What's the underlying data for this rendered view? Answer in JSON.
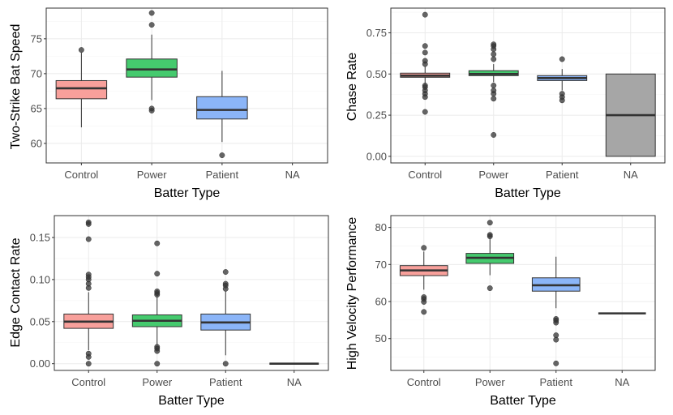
{
  "chart_data": [
    {
      "type": "boxplot",
      "title": "",
      "xlabel": "Batter Type",
      "ylabel": "Two-Strike Bat Speed",
      "categories": [
        "Control",
        "Power",
        "Patient",
        "NA"
      ],
      "ylim": [
        57.2,
        79.4
      ],
      "yticks": [
        60,
        65,
        70,
        75
      ],
      "y_tick_labels": [
        "60",
        "65",
        "70",
        "75"
      ],
      "grid": true,
      "legend": "none",
      "boxes": [
        {
          "category": "Control",
          "q1": 66.4,
          "median": 67.9,
          "q3": 69.0,
          "whisker_low": 62.3,
          "whisker_high": 73.0,
          "outliers": [
            73.4
          ],
          "fill": "#F8A09B"
        },
        {
          "category": "Power",
          "q1": 69.5,
          "median": 70.6,
          "q3": 72.1,
          "whisker_low": 66.2,
          "whisker_high": 75.6,
          "outliers": [
            64.7,
            65.0,
            77.0,
            78.7
          ],
          "fill": "#45CA6E"
        },
        {
          "category": "Patient",
          "q1": 63.5,
          "median": 64.8,
          "q3": 66.7,
          "whisker_low": 60.2,
          "whisker_high": 70.4,
          "outliers": [
            58.3
          ],
          "fill": "#8BB5F8"
        }
      ]
    },
    {
      "type": "boxplot",
      "title": "",
      "xlabel": "Batter Type",
      "ylabel": "Chase Rate",
      "categories": [
        "Control",
        "Power",
        "Patient",
        "NA"
      ],
      "ylim": [
        -0.04,
        0.9
      ],
      "yticks": [
        0,
        0.25,
        0.5,
        0.75
      ],
      "y_tick_labels": [
        "0.00",
        "0.25",
        "0.50",
        "0.75"
      ],
      "grid": true,
      "legend": "none",
      "boxes": [
        {
          "category": "Control",
          "q1": 0.48,
          "median": 0.49,
          "q3": 0.505,
          "whisker_low": 0.44,
          "whisker_high": 0.545,
          "outliers": [
            0.27,
            0.36,
            0.38,
            0.4,
            0.42,
            0.43,
            0.56,
            0.58,
            0.63,
            0.67,
            0.86
          ],
          "fill": "#F8A09B"
        },
        {
          "category": "Power",
          "q1": 0.49,
          "median": 0.5,
          "q3": 0.52,
          "whisker_low": 0.45,
          "whisker_high": 0.56,
          "outliers": [
            0.13,
            0.35,
            0.38,
            0.4,
            0.43,
            0.59,
            0.62,
            0.65,
            0.67,
            0.68
          ],
          "fill": "#45CA6E"
        },
        {
          "category": "Patient",
          "q1": 0.46,
          "median": 0.475,
          "q3": 0.49,
          "whisker_low": 0.4,
          "whisker_high": 0.53,
          "outliers": [
            0.34,
            0.36,
            0.38,
            0.59
          ],
          "fill": "#8BB5F8"
        },
        {
          "category": "NA",
          "q1": 0.0,
          "median": 0.25,
          "q3": 0.5,
          "whisker_low": 0.0,
          "whisker_high": 0.5,
          "outliers": [],
          "fill": "#A6A6A6"
        }
      ]
    },
    {
      "type": "boxplot",
      "title": "",
      "xlabel": "Batter Type",
      "ylabel": "Edge Contact Rate",
      "categories": [
        "Control",
        "Power",
        "Patient",
        "NA"
      ],
      "ylim": [
        -0.008,
        0.176
      ],
      "yticks": [
        0,
        0.05,
        0.1,
        0.15
      ],
      "y_tick_labels": [
        "0.00",
        "0.05",
        "0.10",
        "0.15"
      ],
      "grid": true,
      "legend": "none",
      "boxes": [
        {
          "category": "Control",
          "q1": 0.042,
          "median": 0.05,
          "q3": 0.059,
          "whisker_low": 0.016,
          "whisker_high": 0.085,
          "outliers": [
            0.0,
            0.008,
            0.012,
            0.09,
            0.095,
            0.1,
            0.103,
            0.106,
            0.148,
            0.166,
            0.168
          ],
          "fill": "#F8A09B"
        },
        {
          "category": "Power",
          "q1": 0.044,
          "median": 0.051,
          "q3": 0.058,
          "whisker_low": 0.022,
          "whisker_high": 0.08,
          "outliers": [
            0.0,
            0.015,
            0.018,
            0.02,
            0.082,
            0.084,
            0.086,
            0.107,
            0.143
          ],
          "fill": "#45CA6E"
        },
        {
          "category": "Patient",
          "q1": 0.04,
          "median": 0.049,
          "q3": 0.059,
          "whisker_low": 0.01,
          "whisker_high": 0.086,
          "outliers": [
            0.0,
            0.089,
            0.093,
            0.095,
            0.109
          ],
          "fill": "#8BB5F8"
        },
        {
          "category": "NA",
          "q1": 0.0,
          "median": 0.0,
          "q3": 0.0,
          "whisker_low": 0.0,
          "whisker_high": 0.0,
          "outliers": [],
          "fill": "#A6A6A6"
        }
      ]
    },
    {
      "type": "boxplot",
      "title": "",
      "xlabel": "Batter Type",
      "ylabel": "High Velocity Performance",
      "categories": [
        "Control",
        "Power",
        "Patient",
        "NA"
      ],
      "ylim": [
        41.4,
        83.2
      ],
      "yticks": [
        50,
        60,
        70,
        80
      ],
      "y_tick_labels": [
        "50",
        "60",
        "70",
        "80"
      ],
      "grid": true,
      "legend": "none",
      "boxes": [
        {
          "category": "Control",
          "q1": 67.0,
          "median": 68.4,
          "q3": 69.7,
          "whisker_low": 63.2,
          "whisker_high": 73.5,
          "outliers": [
            57.2,
            59.9,
            60.7,
            61.2,
            74.5
          ],
          "fill": "#F8A09B"
        },
        {
          "category": "Power",
          "q1": 70.3,
          "median": 71.8,
          "q3": 73.0,
          "whisker_low": 67.1,
          "whisker_high": 77.0,
          "outliers": [
            63.6,
            77.6,
            78.0,
            81.3
          ],
          "fill": "#45CA6E"
        },
        {
          "category": "Patient",
          "q1": 62.8,
          "median": 64.4,
          "q3": 66.4,
          "whisker_low": 58.2,
          "whisker_high": 72.1,
          "outliers": [
            43.3,
            49.7,
            50.9,
            54.3,
            54.9,
            55.3
          ],
          "fill": "#8BB5F8"
        },
        {
          "category": "NA",
          "q1": 56.8,
          "median": 56.8,
          "q3": 56.8,
          "whisker_low": 56.8,
          "whisker_high": 56.8,
          "outliers": [],
          "fill": "#A6A6A6"
        }
      ]
    }
  ]
}
